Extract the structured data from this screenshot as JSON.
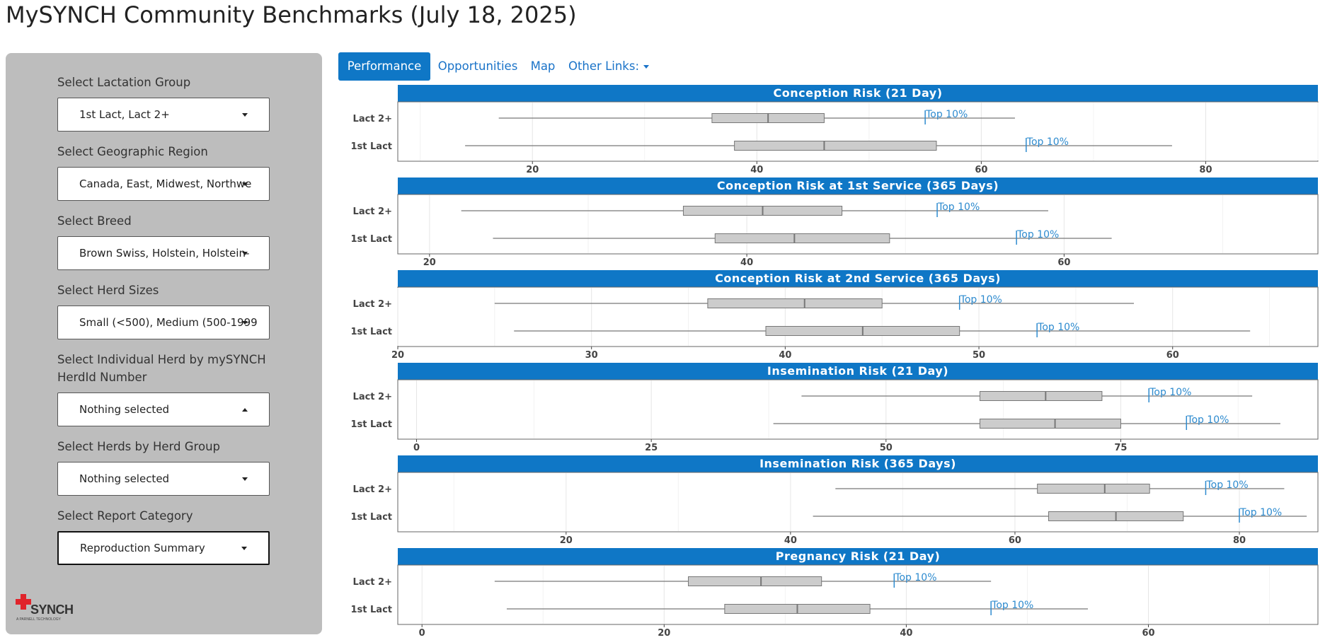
{
  "page": {
    "title": "MySYNCH Community Benchmarks (July 18, 2025)"
  },
  "sidebar": {
    "filters": [
      {
        "label": "Select Lactation Group",
        "value": "1st Lact, Lact 2+"
      },
      {
        "label": "Select Geographic Region",
        "value": "Canada, East, Midwest, Northwe"
      },
      {
        "label": "Select Breed",
        "value": "Brown Swiss, Holstein, Holstein-"
      },
      {
        "label": "Select Herd Sizes",
        "value": "Small (<500), Medium (500-1999"
      },
      {
        "label_line1": "Select Individual Herd by mySYNCH",
        "label_line2": "HerdId Number",
        "value": "Nothing selected"
      },
      {
        "label": "Select Herds by Herd Group",
        "value": "Nothing selected"
      },
      {
        "label": "Select Report Category",
        "value": "Reproduction Summary"
      }
    ],
    "logo": {
      "text": "SYNCH",
      "small_text": "A PARNELL TECHNOLOGY",
      "accent_color": "#e0242b"
    }
  },
  "tabs": [
    {
      "label": "Performance"
    },
    {
      "label": "Opportunities"
    },
    {
      "label": "Map"
    },
    {
      "label": "Other Links:"
    }
  ],
  "colors": {
    "header_bg": "#0f77c6",
    "box_fill": "#cccccc",
    "top10": "#2e8bcf"
  },
  "chart_data": [
    {
      "type": "boxplot",
      "title": "Conception Risk (21 Day)",
      "xlim": [
        8,
        90
      ],
      "xticks": [
        20,
        40,
        60,
        80
      ],
      "marker_label": "Top 10%",
      "series": [
        {
          "name": "Lact 2+",
          "min": 17,
          "q1": 36,
          "median": 41,
          "q3": 46,
          "max": 63,
          "top10": 55
        },
        {
          "name": "1st Lact",
          "min": 14,
          "q1": 38,
          "median": 46,
          "q3": 56,
          "max": 77,
          "top10": 64
        }
      ]
    },
    {
      "type": "boxplot",
      "title": "Conception Risk at 1st Service (365 Days)",
      "xlim": [
        18,
        76
      ],
      "xticks": [
        20,
        40,
        60
      ],
      "marker_label": "Top 10%",
      "series": [
        {
          "name": "Lact 2+",
          "min": 22,
          "q1": 36,
          "median": 41,
          "q3": 46,
          "max": 59,
          "top10": 52
        },
        {
          "name": "1st Lact",
          "min": 24,
          "q1": 38,
          "median": 43,
          "q3": 49,
          "max": 63,
          "top10": 57
        }
      ]
    },
    {
      "type": "boxplot",
      "title": "Conception Risk at 2nd Service (365 Days)",
      "xlim": [
        20,
        67.5
      ],
      "xticks": [
        20,
        30,
        40,
        50,
        60
      ],
      "marker_label": "Top 10%",
      "series": [
        {
          "name": "Lact 2+",
          "min": 25,
          "q1": 36,
          "median": 41,
          "q3": 45,
          "max": 58,
          "top10": 49
        },
        {
          "name": "1st Lact",
          "min": 26,
          "q1": 39,
          "median": 44,
          "q3": 49,
          "max": 64,
          "top10": 53
        }
      ]
    },
    {
      "type": "boxplot",
      "title": "Insemination Risk (21 Day)",
      "xlim": [
        -2,
        96
      ],
      "xticks": [
        0,
        25,
        50,
        75
      ],
      "marker_label": "Top 10%",
      "series": [
        {
          "name": "Lact 2+",
          "min": 41,
          "q1": 60,
          "median": 67,
          "q3": 73,
          "max": 89,
          "top10": 78
        },
        {
          "name": "1st Lact",
          "min": 38,
          "q1": 60,
          "median": 68,
          "q3": 75,
          "max": 92,
          "top10": 82
        }
      ]
    },
    {
      "type": "boxplot",
      "title": "Insemination Risk (365 Days)",
      "xlim": [
        5,
        87
      ],
      "xticks": [
        20,
        40,
        60,
        80
      ],
      "marker_label": "Top 10%",
      "series": [
        {
          "name": "Lact 2+",
          "min": 44,
          "q1": 62,
          "median": 68,
          "q3": 72,
          "max": 84,
          "top10": 77
        },
        {
          "name": "1st Lact",
          "min": 42,
          "q1": 63,
          "median": 69,
          "q3": 75,
          "max": 86,
          "top10": 80
        }
      ]
    },
    {
      "type": "boxplot",
      "title": "Pregnancy Risk (21 Day)",
      "xlim": [
        -2,
        74
      ],
      "xticks": [
        0,
        20,
        40,
        60
      ],
      "marker_label": "Top 10%",
      "series": [
        {
          "name": "Lact 2+",
          "min": 6,
          "q1": 22,
          "median": 28,
          "q3": 33,
          "max": 47,
          "top10": 39
        },
        {
          "name": "1st Lact",
          "min": 7,
          "q1": 25,
          "median": 31,
          "q3": 37,
          "max": 55,
          "top10": 47
        }
      ]
    }
  ]
}
